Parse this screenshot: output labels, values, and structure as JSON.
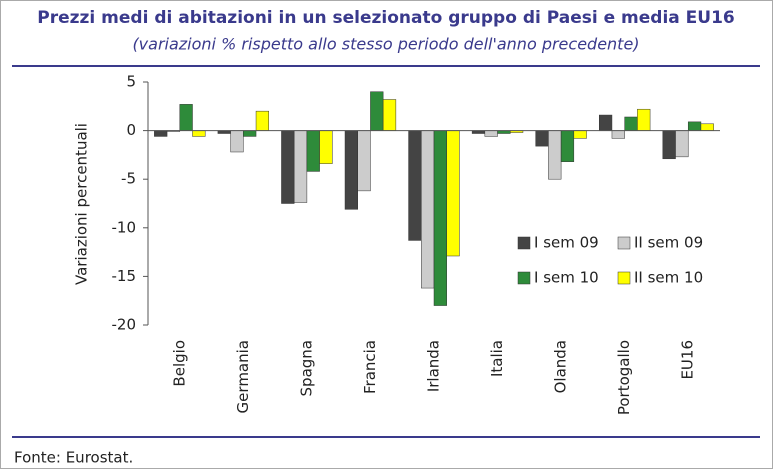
{
  "chart_data": {
    "type": "bar",
    "title": "Prezzi medi di abitazioni in un selezionato gruppo di Paesi e media EU16",
    "subtitle": "(variazioni % rispetto allo stesso periodo dell'anno precedente)",
    "y_label": "Variazioni percentuali",
    "source": "Fonte: Eurostat.",
    "categories": [
      "Belgio",
      "Germania",
      "Spagna",
      "Francia",
      "Irlanda",
      "Italia",
      "Olanda",
      "Portogallo",
      "EU16"
    ],
    "series": [
      {
        "name": "I sem 09",
        "color": "#444444",
        "values": [
          -0.6,
          -0.3,
          -7.5,
          -8.1,
          -11.3,
          -0.3,
          -1.6,
          1.6,
          -2.9
        ]
      },
      {
        "name": "II sem 09",
        "color": "#cccccc",
        "values": [
          -0.1,
          -2.2,
          -7.4,
          -6.2,
          -16.2,
          -0.6,
          -5.0,
          -0.8,
          -2.7
        ]
      },
      {
        "name": "I sem 10",
        "color": "#2e8b3a",
        "values": [
          2.7,
          -0.6,
          -4.2,
          4.0,
          -18.0,
          -0.3,
          -3.2,
          1.4,
          0.9
        ]
      },
      {
        "name": "II sem 10",
        "color": "#ffff00",
        "values": [
          -0.6,
          2.0,
          -3.4,
          3.2,
          -12.9,
          -0.2,
          -0.8,
          2.2,
          0.7
        ]
      }
    ],
    "ylim": [
      -20,
      5
    ],
    "yticks": [
      5,
      0,
      -5,
      -10,
      -15,
      -20
    ],
    "grid": false,
    "legend": "lower right"
  }
}
